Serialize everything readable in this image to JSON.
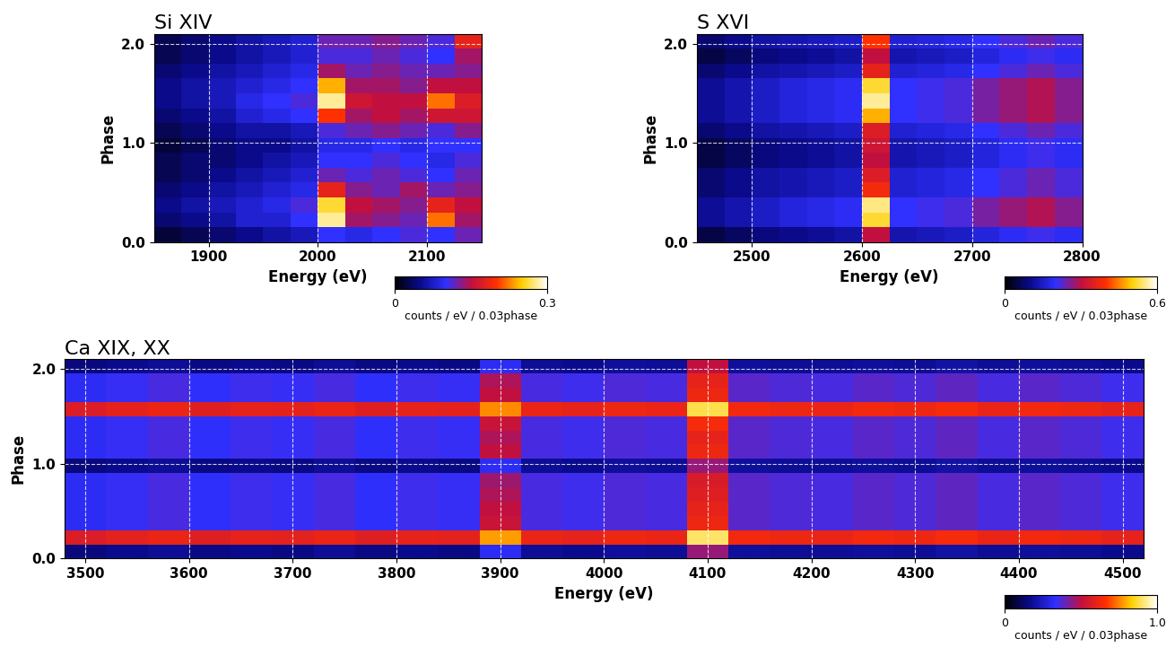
{
  "chart_data": [
    {
      "type": "heatmap",
      "title": "Si XIV",
      "xlabel": "Energy (eV)",
      "ylabel": "Phase",
      "xlim": [
        1850,
        2150
      ],
      "xticks": [
        1900,
        2000,
        2100
      ],
      "ylim": [
        0,
        2.1
      ],
      "yticks": [
        {
          "value": 0,
          "label": "0.0"
        },
        {
          "value": 1,
          "label": "1.0"
        },
        {
          "value": 2,
          "label": "2.0"
        }
      ],
      "grid": true,
      "x_edges": [
        1850,
        1875,
        1900,
        1925,
        1950,
        1975,
        2000,
        2025,
        2050,
        2075,
        2100,
        2125,
        2150
      ],
      "y_edges": [
        0,
        0.15,
        0.3,
        0.45,
        0.6,
        0.75,
        0.9,
        1.05,
        1.2,
        1.35,
        1.5,
        1.65,
        1.8,
        1.95,
        2.1
      ],
      "cells": [
        [
          0.02,
          0.03,
          0.04,
          0.05,
          0.06,
          0.07,
          0.1,
          0.09,
          0.1,
          0.11,
          0.1,
          0.12
        ],
        [
          0.04,
          0.05,
          0.06,
          0.08,
          0.08,
          0.1,
          0.28,
          0.14,
          0.13,
          0.12,
          0.22,
          0.14
        ],
        [
          0.05,
          0.06,
          0.07,
          0.08,
          0.09,
          0.11,
          0.26,
          0.15,
          0.14,
          0.13,
          0.18,
          0.15
        ],
        [
          0.04,
          0.05,
          0.06,
          0.07,
          0.08,
          0.09,
          0.18,
          0.13,
          0.12,
          0.14,
          0.12,
          0.13
        ],
        [
          0.03,
          0.04,
          0.05,
          0.06,
          0.07,
          0.08,
          0.12,
          0.11,
          0.12,
          0.11,
          0.1,
          0.12
        ],
        [
          0.03,
          0.04,
          0.04,
          0.05,
          0.06,
          0.07,
          0.1,
          0.1,
          0.11,
          0.1,
          0.09,
          0.11
        ],
        [
          0.02,
          0.03,
          0.04,
          0.05,
          0.05,
          0.06,
          0.09,
          0.09,
          0.1,
          0.09,
          0.1,
          0.1
        ],
        [
          0.03,
          0.04,
          0.05,
          0.06,
          0.06,
          0.07,
          0.11,
          0.12,
          0.13,
          0.12,
          0.11,
          0.13
        ],
        [
          0.04,
          0.05,
          0.06,
          0.08,
          0.09,
          0.1,
          0.2,
          0.14,
          0.15,
          0.14,
          0.16,
          0.16
        ],
        [
          0.05,
          0.06,
          0.07,
          0.09,
          0.1,
          0.11,
          0.28,
          0.16,
          0.15,
          0.15,
          0.22,
          0.17
        ],
        [
          0.05,
          0.06,
          0.07,
          0.08,
          0.09,
          0.1,
          0.24,
          0.14,
          0.14,
          0.13,
          0.15,
          0.15
        ],
        [
          0.04,
          0.05,
          0.06,
          0.07,
          0.08,
          0.09,
          0.14,
          0.12,
          0.13,
          0.12,
          0.12,
          0.13
        ],
        [
          0.03,
          0.04,
          0.05,
          0.06,
          0.07,
          0.08,
          0.11,
          0.11,
          0.12,
          0.11,
          0.1,
          0.14
        ],
        [
          0.03,
          0.04,
          0.05,
          0.06,
          0.07,
          0.08,
          0.12,
          0.12,
          0.13,
          0.12,
          0.11,
          0.18
        ]
      ],
      "colorbar": {
        "label": "counts / eV / 0.03phase",
        "lim": [
          0,
          0.3
        ],
        "ticks": [
          0,
          0.3
        ]
      }
    },
    {
      "type": "heatmap",
      "title": "S XVI",
      "xlabel": "Energy (eV)",
      "ylabel": "Phase",
      "xlim": [
        2450,
        2800
      ],
      "xticks": [
        2500,
        2600,
        2700,
        2800
      ],
      "ylim": [
        0,
        2.1
      ],
      "yticks": [
        {
          "value": 0,
          "label": "0.0"
        },
        {
          "value": 1,
          "label": "1.0"
        },
        {
          "value": 2,
          "label": "2.0"
        }
      ],
      "grid": true,
      "x_edges": [
        2450,
        2475,
        2500,
        2525,
        2550,
        2575,
        2600,
        2625,
        2650,
        2675,
        2700,
        2725,
        2750,
        2775,
        2800
      ],
      "y_edges": [
        0,
        0.15,
        0.3,
        0.45,
        0.6,
        0.75,
        0.9,
        1.05,
        1.2,
        1.35,
        1.5,
        1.65,
        1.8,
        1.95,
        2.1
      ],
      "cells": [
        [
          0.05,
          0.07,
          0.09,
          0.1,
          0.11,
          0.12,
          0.3,
          0.13,
          0.14,
          0.15,
          0.17,
          0.19,
          0.21,
          0.19
        ],
        [
          0.11,
          0.13,
          0.15,
          0.17,
          0.18,
          0.19,
          0.52,
          0.2,
          0.21,
          0.22,
          0.25,
          0.27,
          0.29,
          0.26
        ],
        [
          0.11,
          0.13,
          0.15,
          0.17,
          0.18,
          0.19,
          0.55,
          0.2,
          0.21,
          0.22,
          0.25,
          0.27,
          0.29,
          0.26
        ],
        [
          0.08,
          0.1,
          0.12,
          0.13,
          0.14,
          0.15,
          0.38,
          0.16,
          0.17,
          0.18,
          0.2,
          0.22,
          0.24,
          0.22
        ],
        [
          0.08,
          0.1,
          0.12,
          0.13,
          0.14,
          0.15,
          0.34,
          0.16,
          0.17,
          0.18,
          0.2,
          0.22,
          0.24,
          0.22
        ],
        [
          0.05,
          0.07,
          0.09,
          0.1,
          0.11,
          0.12,
          0.3,
          0.13,
          0.14,
          0.15,
          0.17,
          0.19,
          0.21,
          0.19
        ],
        [
          0.05,
          0.07,
          0.09,
          0.1,
          0.11,
          0.12,
          0.32,
          0.13,
          0.14,
          0.15,
          0.17,
          0.19,
          0.21,
          0.19
        ],
        [
          0.08,
          0.1,
          0.12,
          0.13,
          0.14,
          0.15,
          0.34,
          0.16,
          0.17,
          0.18,
          0.2,
          0.22,
          0.24,
          0.22
        ],
        [
          0.11,
          0.13,
          0.15,
          0.17,
          0.18,
          0.19,
          0.48,
          0.2,
          0.21,
          0.22,
          0.25,
          0.27,
          0.29,
          0.26
        ],
        [
          0.11,
          0.13,
          0.15,
          0.17,
          0.18,
          0.19,
          0.56,
          0.2,
          0.21,
          0.22,
          0.25,
          0.27,
          0.29,
          0.26
        ],
        [
          0.11,
          0.13,
          0.15,
          0.17,
          0.18,
          0.19,
          0.52,
          0.2,
          0.21,
          0.22,
          0.25,
          0.27,
          0.29,
          0.26
        ],
        [
          0.08,
          0.1,
          0.12,
          0.13,
          0.14,
          0.15,
          0.36,
          0.16,
          0.17,
          0.18,
          0.2,
          0.22,
          0.24,
          0.22
        ],
        [
          0.05,
          0.07,
          0.09,
          0.1,
          0.11,
          0.12,
          0.3,
          0.13,
          0.14,
          0.15,
          0.17,
          0.19,
          0.21,
          0.19
        ],
        [
          0.08,
          0.1,
          0.12,
          0.13,
          0.14,
          0.15,
          0.4,
          0.16,
          0.17,
          0.18,
          0.2,
          0.22,
          0.24,
          0.22
        ]
      ],
      "colorbar": {
        "label": "counts / eV / 0.03phase",
        "lim": [
          0,
          0.6
        ],
        "ticks": [
          0,
          0.6
        ]
      }
    },
    {
      "type": "heatmap",
      "title": "Ca XIX, XX",
      "xlabel": "Energy (eV)",
      "ylabel": "Phase",
      "xlim": [
        3480,
        4520
      ],
      "xticks": [
        3500,
        3600,
        3700,
        3800,
        3900,
        4000,
        4100,
        4200,
        4300,
        4400,
        4500
      ],
      "ylim": [
        0,
        2.1
      ],
      "yticks": [
        {
          "value": 0,
          "label": "0.0"
        },
        {
          "value": 1,
          "label": "1.0"
        },
        {
          "value": 2,
          "label": "2.0"
        }
      ],
      "grid": true,
      "x_edges": [
        3480,
        3520,
        3560,
        3600,
        3640,
        3680,
        3720,
        3760,
        3800,
        3840,
        3880,
        3920,
        3960,
        4000,
        4040,
        4080,
        4120,
        4160,
        4200,
        4240,
        4280,
        4320,
        4360,
        4400,
        4440,
        4480,
        4520
      ],
      "y_edges": [
        0,
        0.15,
        0.3,
        0.45,
        0.6,
        0.75,
        0.9,
        1.05,
        1.2,
        1.35,
        1.5,
        1.65,
        1.8,
        1.95,
        2.1
      ],
      "cells": [
        [
          0.15,
          0.17,
          0.18,
          0.16,
          0.17,
          0.16,
          0.18,
          0.16,
          0.17,
          0.16,
          0.32,
          0.18,
          0.17,
          0.19,
          0.18,
          0.45,
          0.19,
          0.18,
          0.18,
          0.19,
          0.18,
          0.2,
          0.18,
          0.19,
          0.18,
          0.17
        ],
        [
          0.57,
          0.59,
          0.61,
          0.58,
          0.6,
          0.59,
          0.61,
          0.58,
          0.6,
          0.59,
          0.78,
          0.61,
          0.6,
          0.62,
          0.61,
          0.9,
          0.63,
          0.62,
          0.61,
          0.63,
          0.62,
          0.64,
          0.61,
          0.63,
          0.62,
          0.6
        ],
        [
          0.32,
          0.34,
          0.36,
          0.33,
          0.35,
          0.34,
          0.36,
          0.33,
          0.35,
          0.34,
          0.52,
          0.36,
          0.35,
          0.37,
          0.36,
          0.62,
          0.38,
          0.37,
          0.36,
          0.38,
          0.37,
          0.39,
          0.36,
          0.38,
          0.37,
          0.35
        ],
        [
          0.32,
          0.34,
          0.36,
          0.33,
          0.35,
          0.34,
          0.36,
          0.33,
          0.35,
          0.34,
          0.5,
          0.36,
          0.35,
          0.37,
          0.36,
          0.6,
          0.38,
          0.37,
          0.36,
          0.38,
          0.37,
          0.39,
          0.36,
          0.38,
          0.37,
          0.35
        ],
        [
          0.32,
          0.34,
          0.36,
          0.33,
          0.35,
          0.34,
          0.36,
          0.33,
          0.35,
          0.34,
          0.48,
          0.36,
          0.35,
          0.37,
          0.36,
          0.58,
          0.38,
          0.37,
          0.36,
          0.38,
          0.37,
          0.39,
          0.36,
          0.38,
          0.37,
          0.35
        ],
        [
          0.32,
          0.34,
          0.36,
          0.33,
          0.35,
          0.34,
          0.36,
          0.33,
          0.35,
          0.34,
          0.46,
          0.36,
          0.35,
          0.37,
          0.36,
          0.56,
          0.38,
          0.37,
          0.36,
          0.38,
          0.37,
          0.39,
          0.36,
          0.38,
          0.37,
          0.35
        ],
        [
          0.15,
          0.17,
          0.18,
          0.16,
          0.17,
          0.16,
          0.18,
          0.16,
          0.17,
          0.16,
          0.32,
          0.18,
          0.17,
          0.19,
          0.18,
          0.45,
          0.19,
          0.18,
          0.18,
          0.19,
          0.18,
          0.2,
          0.18,
          0.19,
          0.18,
          0.17
        ],
        [
          0.32,
          0.34,
          0.36,
          0.33,
          0.35,
          0.34,
          0.36,
          0.33,
          0.35,
          0.34,
          0.5,
          0.36,
          0.35,
          0.37,
          0.36,
          0.62,
          0.38,
          0.37,
          0.36,
          0.38,
          0.37,
          0.39,
          0.36,
          0.38,
          0.37,
          0.35
        ],
        [
          0.32,
          0.34,
          0.36,
          0.33,
          0.35,
          0.34,
          0.36,
          0.33,
          0.35,
          0.34,
          0.48,
          0.36,
          0.35,
          0.37,
          0.36,
          0.6,
          0.38,
          0.37,
          0.36,
          0.38,
          0.37,
          0.39,
          0.36,
          0.38,
          0.37,
          0.35
        ],
        [
          0.32,
          0.34,
          0.36,
          0.33,
          0.35,
          0.34,
          0.36,
          0.33,
          0.35,
          0.34,
          0.52,
          0.36,
          0.35,
          0.37,
          0.36,
          0.64,
          0.38,
          0.37,
          0.36,
          0.38,
          0.37,
          0.39,
          0.36,
          0.38,
          0.37,
          0.35
        ],
        [
          0.57,
          0.59,
          0.61,
          0.58,
          0.6,
          0.59,
          0.61,
          0.58,
          0.6,
          0.59,
          0.76,
          0.61,
          0.6,
          0.62,
          0.61,
          0.88,
          0.63,
          0.62,
          0.61,
          0.63,
          0.62,
          0.64,
          0.61,
          0.63,
          0.62,
          0.6
        ],
        [
          0.32,
          0.34,
          0.36,
          0.33,
          0.35,
          0.34,
          0.36,
          0.33,
          0.35,
          0.34,
          0.5,
          0.36,
          0.35,
          0.37,
          0.36,
          0.62,
          0.38,
          0.37,
          0.36,
          0.38,
          0.37,
          0.39,
          0.36,
          0.38,
          0.37,
          0.35
        ],
        [
          0.32,
          0.34,
          0.36,
          0.33,
          0.35,
          0.34,
          0.36,
          0.33,
          0.35,
          0.34,
          0.48,
          0.36,
          0.35,
          0.37,
          0.36,
          0.6,
          0.38,
          0.37,
          0.36,
          0.38,
          0.37,
          0.39,
          0.36,
          0.38,
          0.37,
          0.35
        ],
        [
          0.15,
          0.17,
          0.18,
          0.16,
          0.17,
          0.16,
          0.18,
          0.16,
          0.17,
          0.16,
          0.32,
          0.18,
          0.17,
          0.19,
          0.18,
          0.5,
          0.19,
          0.18,
          0.18,
          0.19,
          0.18,
          0.2,
          0.18,
          0.19,
          0.18,
          0.17
        ]
      ],
      "colorbar": {
        "label": "counts / eV / 0.03phase",
        "lim": [
          0,
          1.0
        ],
        "ticks": [
          0,
          1.0
        ]
      }
    }
  ]
}
